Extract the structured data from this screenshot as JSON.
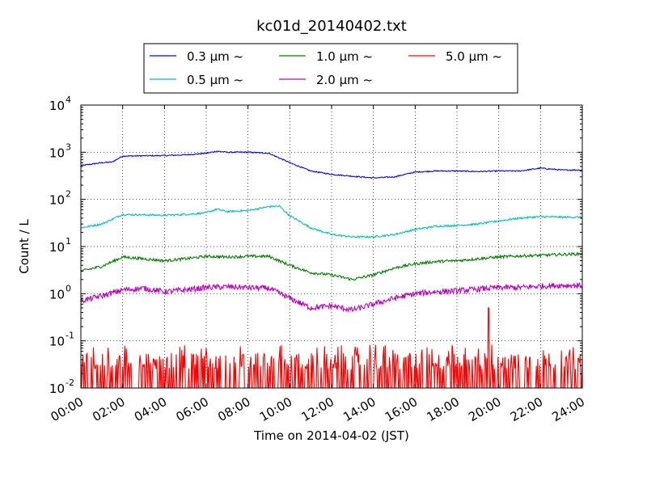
{
  "chart_data": {
    "type": "line",
    "title": "kc01d_20140402.txt",
    "xlabel": "Time on 2014-04-02 (JST)",
    "ylabel": "Count / L",
    "x_unit": "hour",
    "xlim": [
      0,
      24
    ],
    "ylim": [
      0.01,
      10000
    ],
    "y_scale": "log",
    "grid": true,
    "legend_position": "top-center",
    "x_tick_labels": [
      "00:00",
      "02:00",
      "04:00",
      "06:00",
      "08:00",
      "10:00",
      "12:00",
      "14:00",
      "16:00",
      "18:00",
      "20:00",
      "22:00",
      "24:00"
    ],
    "y_tick_labels": [
      {
        "base": "10",
        "exp": "-2"
      },
      {
        "base": "10",
        "exp": "-1"
      },
      {
        "base": "10",
        "exp": "0"
      },
      {
        "base": "10",
        "exp": "1"
      },
      {
        "base": "10",
        "exp": "2"
      },
      {
        "base": "10",
        "exp": "3"
      },
      {
        "base": "10",
        "exp": "4"
      }
    ],
    "series": [
      {
        "name": "0.3 μm ~",
        "color": "#0000ff",
        "x": [
          0,
          1,
          1.5,
          2,
          3,
          4,
          5,
          6,
          6.5,
          7,
          8,
          9,
          10,
          11,
          12,
          13,
          14,
          15,
          16,
          17,
          18,
          19,
          20,
          21,
          22,
          23,
          24
        ],
        "y": [
          520,
          600,
          620,
          830,
          840,
          850,
          880,
          950,
          1050,
          1000,
          1000,
          950,
          600,
          400,
          340,
          310,
          285,
          300,
          380,
          400,
          400,
          390,
          400,
          400,
          460,
          420,
          420
        ]
      },
      {
        "name": "0.5 μm ~",
        "color": "#00bfbf",
        "x": [
          0,
          1,
          2,
          3,
          4,
          5,
          6,
          6.5,
          7,
          8,
          9,
          9.5,
          10,
          11,
          12,
          13,
          14,
          15,
          16,
          17,
          18,
          19,
          20,
          21,
          22,
          23,
          24
        ],
        "y": [
          25,
          30,
          48,
          47,
          46,
          48,
          52,
          62,
          55,
          58,
          70,
          72,
          45,
          25,
          18,
          16,
          16,
          18,
          23,
          27,
          28,
          30,
          35,
          40,
          43,
          42,
          42
        ]
      },
      {
        "name": "1.0 μm ~",
        "color": "#008000",
        "x": [
          0,
          1,
          2,
          3,
          4,
          5,
          6,
          7,
          8,
          9,
          10,
          11,
          12,
          13,
          14,
          15,
          16,
          17,
          18,
          19,
          20,
          21,
          22,
          23,
          24
        ],
        "y": [
          3,
          3.8,
          6,
          5.5,
          5,
          5.5,
          6.2,
          6,
          6.2,
          6.2,
          4,
          2.8,
          2.5,
          2.0,
          2.5,
          3.5,
          4.3,
          4.8,
          5,
          5.5,
          6,
          6.3,
          6.5,
          6.8,
          7
        ]
      },
      {
        "name": "2.0 μm ~",
        "color": "#bf00bf",
        "x": [
          0,
          1,
          2,
          3,
          4,
          5,
          6,
          7,
          8,
          9,
          10,
          11,
          12,
          13,
          14,
          15,
          16,
          17,
          18,
          19,
          20,
          21,
          22,
          23,
          24
        ],
        "y": [
          0.7,
          0.9,
          1.2,
          1.3,
          1.1,
          1.2,
          1.35,
          1.4,
          1.35,
          1.3,
          0.8,
          0.5,
          0.55,
          0.45,
          0.6,
          0.8,
          1.0,
          1.1,
          1.15,
          1.25,
          1.35,
          1.35,
          1.45,
          1.5,
          1.5
        ]
      },
      {
        "name": "5.0 μm ~",
        "color": "#ff0000",
        "x": [
          0,
          1,
          2,
          3,
          4,
          5,
          6,
          7,
          8,
          9,
          10,
          11,
          12,
          13,
          14,
          15,
          16,
          17,
          18,
          19,
          19.5,
          19.6,
          20,
          21,
          22,
          23,
          24
        ],
        "y": [
          0.015,
          0.02,
          0.03,
          0.02,
          0.025,
          0.02,
          0.015,
          0.03,
          0.03,
          0.02,
          0.015,
          0.02,
          0.02,
          0.015,
          0.02,
          0.02,
          0.02,
          0.02,
          0.025,
          0.02,
          0.5,
          0.02,
          0.03,
          0.02,
          0.025,
          0.02,
          0.03
        ]
      }
    ]
  }
}
